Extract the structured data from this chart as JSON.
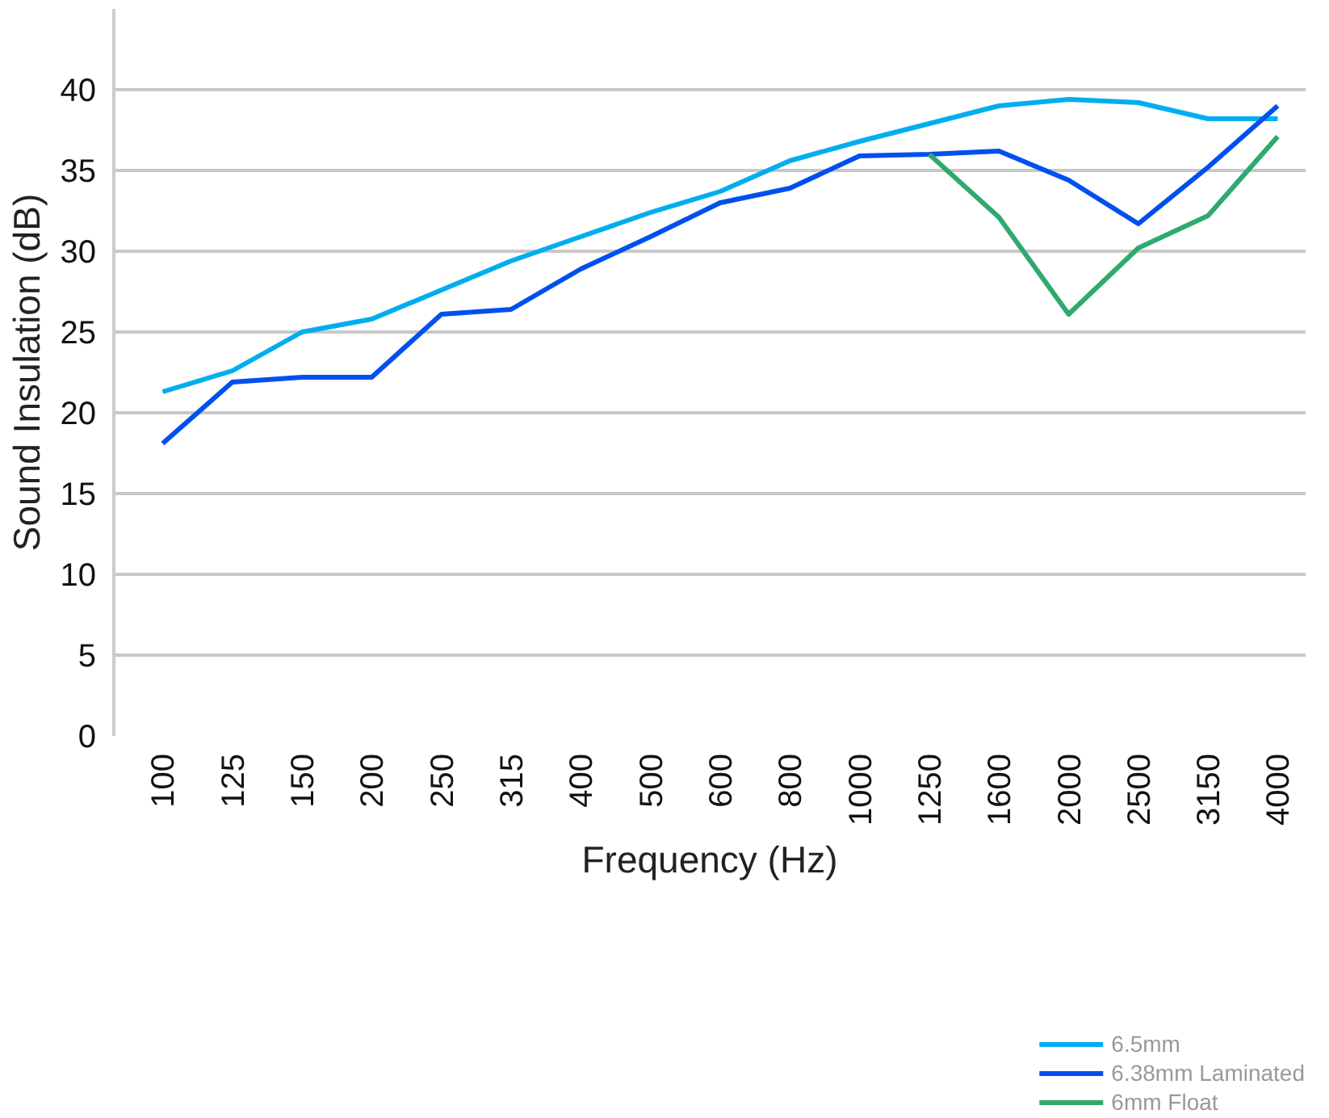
{
  "chart_data": {
    "type": "line",
    "xlabel": "Frequency (Hz)",
    "ylabel": "Sound Insulation (dB)",
    "categories": [
      "100",
      "125",
      "150",
      "200",
      "250",
      "315",
      "400",
      "500",
      "600",
      "800",
      "1000",
      "1250",
      "1600",
      "2000",
      "2500",
      "3150",
      "4000"
    ],
    "series": [
      {
        "name": "6.5mm",
        "color": "#00aeef",
        "values": [
          21.3,
          22.6,
          25.0,
          25.8,
          27.6,
          29.4,
          30.9,
          32.4,
          33.7,
          35.6,
          36.8,
          37.9,
          39.0,
          39.4,
          39.2,
          38.2,
          38.2
        ]
      },
      {
        "name": "6.38mm Laminated",
        "color": "#0050ef",
        "values": [
          18.1,
          21.9,
          22.2,
          22.2,
          26.1,
          26.4,
          28.9,
          30.9,
          33.0,
          33.9,
          35.9,
          36.0,
          36.2,
          34.4,
          31.7,
          35.2,
          39.0
        ]
      },
      {
        "name": "6mm Float",
        "color": "#2eaa6e",
        "values": [
          null,
          null,
          null,
          null,
          null,
          null,
          null,
          null,
          null,
          null,
          null,
          36.0,
          32.1,
          26.1,
          30.2,
          32.2,
          37.1
        ]
      }
    ],
    "ylim": [
      0,
      45
    ],
    "yticks": [
      0,
      5,
      10,
      15,
      20,
      25,
      30,
      35,
      40
    ],
    "grid": "y",
    "legend": "bottom right",
    "marker": "none",
    "line_style": "solid"
  }
}
